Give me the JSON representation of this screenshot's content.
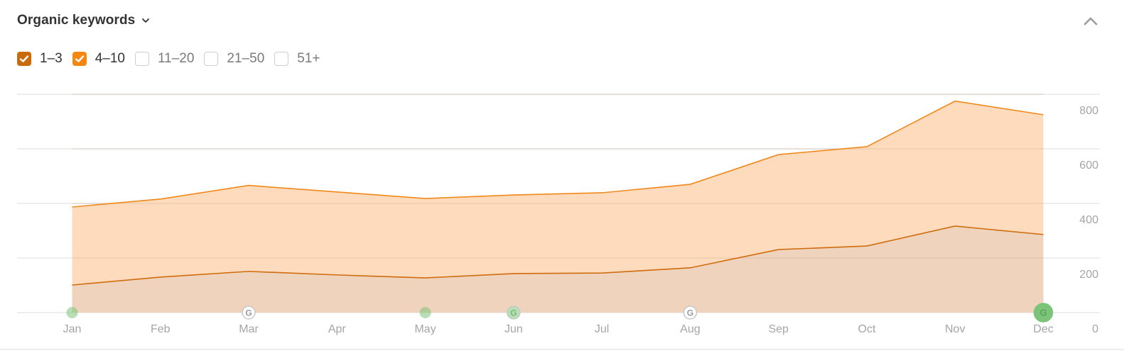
{
  "widget": {
    "title": "Organic keywords",
    "title_dropdown_icon": "chevron-down-icon",
    "collapse_icon": "chevron-up-icon"
  },
  "filters": [
    {
      "label": "1–3",
      "checked": true,
      "color": "#c96a0c"
    },
    {
      "label": "4–10",
      "checked": true,
      "color": "#f5860f"
    },
    {
      "label": "11–20",
      "checked": false,
      "color": ""
    },
    {
      "label": "21–50",
      "checked": false,
      "color": ""
    },
    {
      "label": "51+",
      "checked": false,
      "color": ""
    }
  ],
  "colors": {
    "series_1_3_line": "#cf6d0c",
    "series_1_3_fill": "#efd3bd",
    "series_4_10_line": "#f0891a",
    "series_4_10_fill": "#fedbbd",
    "grid": "#e8e8e8",
    "axis_text": "#a5a5a5",
    "marker_green": "#7cc47a"
  },
  "chart_data": {
    "type": "area",
    "stacked": true,
    "title": "Organic keywords",
    "xlabel": "",
    "ylabel": "",
    "categories": [
      "Jan",
      "Feb",
      "Mar",
      "Apr",
      "May",
      "Jun",
      "Jul",
      "Aug",
      "Sep",
      "Oct",
      "Nov",
      "Dec"
    ],
    "series": [
      {
        "name": "1–3",
        "values": [
          101,
          130,
          151,
          138,
          127,
          143,
          145,
          164,
          231,
          244,
          317,
          286
        ]
      },
      {
        "name": "4–10",
        "values": [
          286,
          286,
          315,
          304,
          291,
          288,
          294,
          306,
          348,
          364,
          458,
          439
        ]
      }
    ],
    "stacked_totals": [
      387,
      416,
      466,
      442,
      418,
      431,
      439,
      470,
      579,
      608,
      775,
      725
    ],
    "yticks": [
      0,
      200,
      400,
      600,
      800
    ],
    "ylim": [
      0,
      800
    ],
    "y_axis_position": "right",
    "grid": true,
    "legend": "checkbox-filters-top",
    "annotations": [
      {
        "month": "Jan",
        "type": "green-dot",
        "label": ""
      },
      {
        "month": "Mar",
        "type": "google-update",
        "label": "G"
      },
      {
        "month": "May",
        "type": "green-dot",
        "label": ""
      },
      {
        "month": "Jun",
        "type": "google-update-green",
        "label": "G"
      },
      {
        "month": "Aug",
        "type": "google-update",
        "label": "G"
      },
      {
        "month": "Dec",
        "type": "google-update-green-large",
        "label": "G"
      }
    ]
  }
}
